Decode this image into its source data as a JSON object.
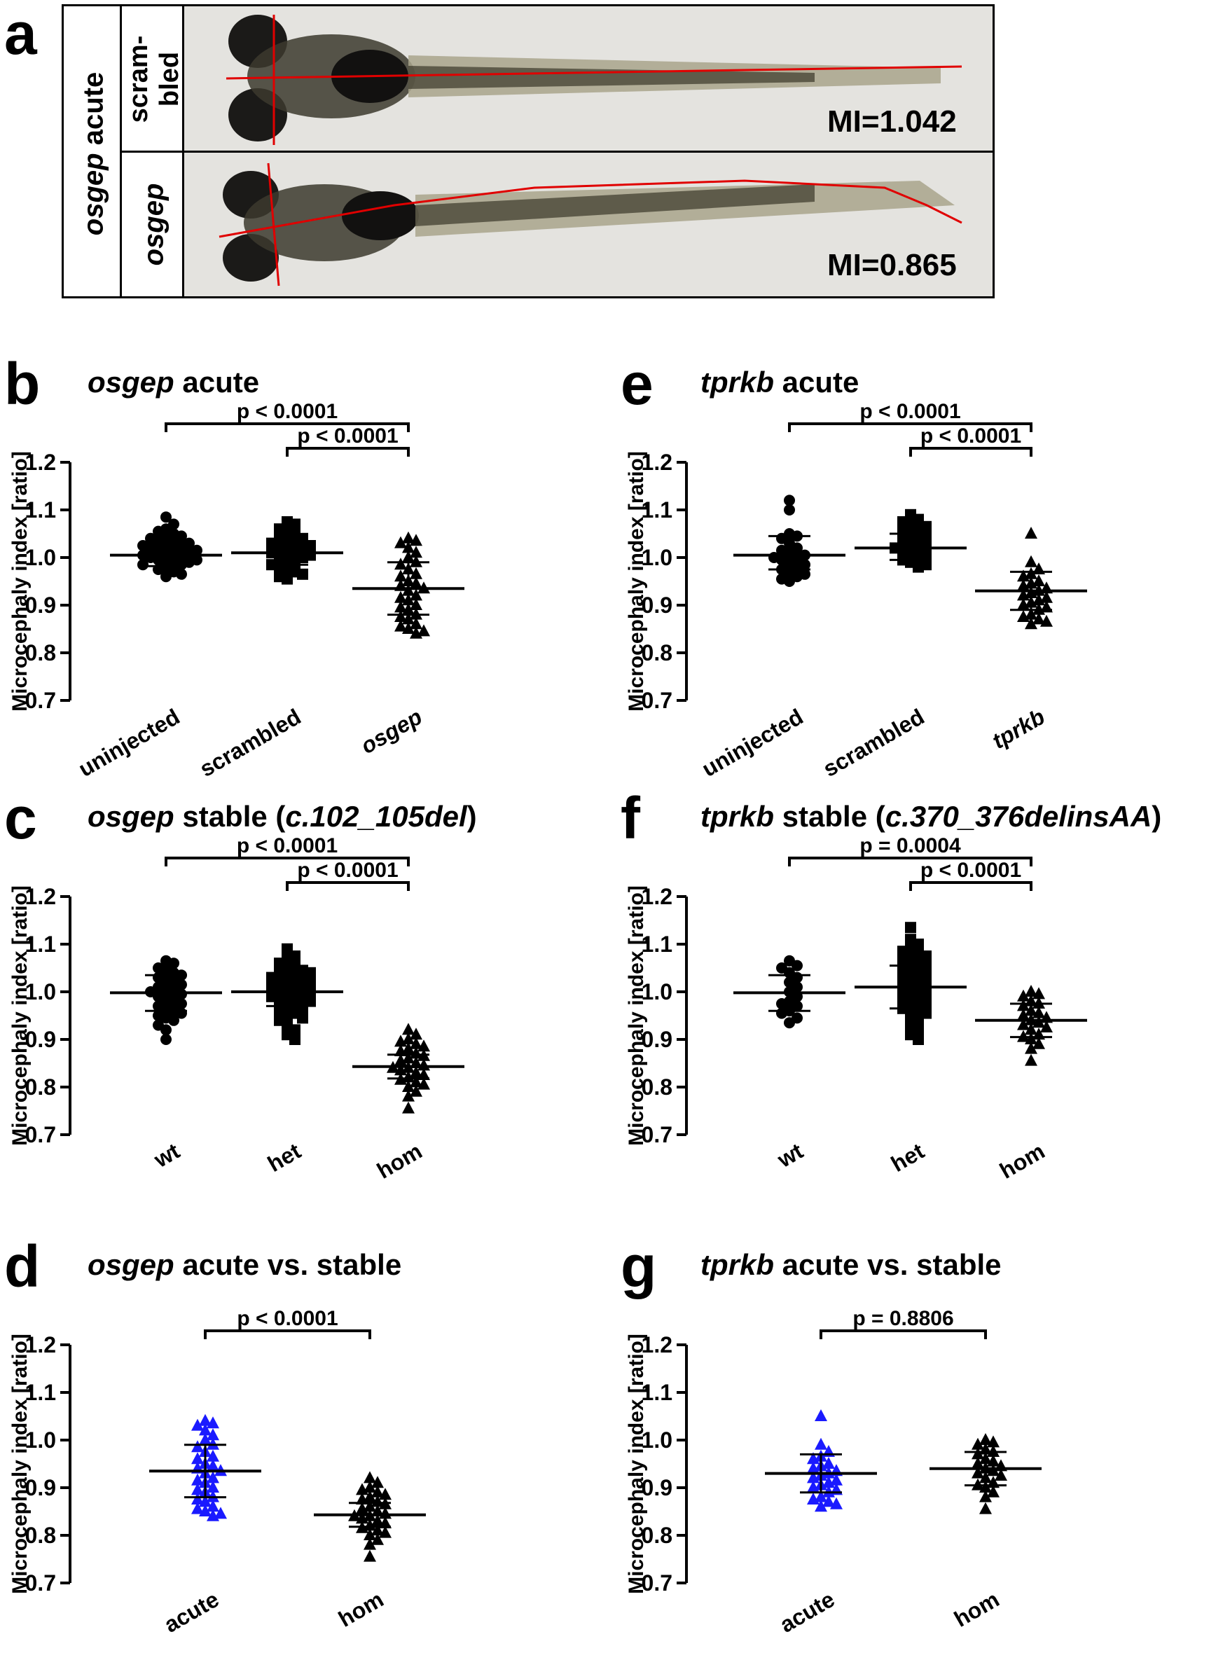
{
  "panel_a": {
    "letter": "a",
    "group_label_italic": "osgep",
    "group_label_rest": " acute",
    "rows": [
      {
        "label_line1": "scram-",
        "label_line2": "bled",
        "mi": "MI=1.042"
      },
      {
        "label": "osgep",
        "mi": "MI=0.865"
      }
    ]
  },
  "chart_data": [
    {
      "letter": "b",
      "type": "scatter",
      "title_italic": "osgep",
      "title_rest": " acute",
      "ylabel": "Microcephaly index [ratio]",
      "ylim": [
        0.7,
        1.2
      ],
      "yticks": [
        "0.7",
        "0.8",
        "0.9",
        "1.0",
        "1.1",
        "1.2"
      ],
      "categories": [
        {
          "label": "uninjected",
          "italic": false,
          "marker": "circle",
          "color": "#000000",
          "mean": 1.005,
          "sd_low": 0.982,
          "sd_high": 1.03,
          "values": [
            1.085,
            1.07,
            1.06,
            1.055,
            1.05,
            1.045,
            1.04,
            1.04,
            1.035,
            1.03,
            1.03,
            1.025,
            1.025,
            1.02,
            1.02,
            1.015,
            1.015,
            1.01,
            1.01,
            1.005,
            1.005,
            1.0,
            1.0,
            0.995,
            0.995,
            0.99,
            0.99,
            0.985,
            0.985,
            0.98,
            0.975,
            0.97,
            0.965,
            0.96
          ]
        },
        {
          "label": "scrambled",
          "italic": false,
          "marker": "square",
          "color": "#000000",
          "mean": 1.01,
          "sd_low": 0.985,
          "sd_high": 1.035,
          "values": [
            1.075,
            1.07,
            1.06,
            1.055,
            1.05,
            1.04,
            1.04,
            1.035,
            1.03,
            1.03,
            1.025,
            1.02,
            1.02,
            1.015,
            1.01,
            1.01,
            1.005,
            1.0,
            1.0,
            0.995,
            0.99,
            0.985,
            0.98,
            0.975,
            0.97,
            0.965,
            0.96,
            0.955
          ]
        },
        {
          "label": "osgep",
          "italic": true,
          "marker": "triangle",
          "color": "#000000",
          "mean": 0.935,
          "sd_low": 0.88,
          "sd_high": 0.99,
          "values": [
            1.04,
            1.035,
            1.03,
            1.02,
            1.01,
            1.0,
            0.99,
            0.985,
            0.975,
            0.965,
            0.96,
            0.95,
            0.945,
            0.94,
            0.935,
            0.93,
            0.92,
            0.915,
            0.91,
            0.9,
            0.895,
            0.89,
            0.88,
            0.875,
            0.87,
            0.86,
            0.855,
            0.85,
            0.845,
            0.84
          ]
        }
      ],
      "brackets": [
        {
          "from": 0,
          "to": 2,
          "text": "p < 0.0001",
          "level": 0
        },
        {
          "from": 1,
          "to": 2,
          "text": "p < 0.0001",
          "level": 1
        }
      ]
    },
    {
      "letter": "e",
      "type": "scatter",
      "title_italic": "tprkb",
      "title_rest": " acute",
      "ylabel": "Microcephaly index [ratio]",
      "ylim": [
        0.7,
        1.2
      ],
      "yticks": [
        "0.7",
        "0.8",
        "0.9",
        "1.0",
        "1.1",
        "1.2"
      ],
      "categories": [
        {
          "label": "uninjected",
          "italic": false,
          "marker": "circle",
          "color": "#000000",
          "mean": 1.005,
          "sd_low": 0.975,
          "sd_high": 1.045,
          "values": [
            1.12,
            1.1,
            1.05,
            1.045,
            1.04,
            1.03,
            1.02,
            1.015,
            1.01,
            1.005,
            1.0,
            1.0,
            0.995,
            0.99,
            0.985,
            0.98,
            0.975,
            0.97,
            0.965,
            0.96,
            0.955,
            0.95
          ]
        },
        {
          "label": "scrambled",
          "italic": false,
          "marker": "square",
          "color": "#000000",
          "mean": 1.02,
          "sd_low": 0.995,
          "sd_high": 1.05,
          "values": [
            1.09,
            1.08,
            1.075,
            1.07,
            1.065,
            1.06,
            1.055,
            1.05,
            1.045,
            1.04,
            1.035,
            1.03,
            1.025,
            1.02,
            1.02,
            1.015,
            1.01,
            1.005,
            1.0,
            0.995,
            0.99,
            0.985,
            0.98
          ]
        },
        {
          "label": "tprkb",
          "italic": true,
          "marker": "triangle",
          "color": "#000000",
          "mean": 0.93,
          "sd_low": 0.89,
          "sd_high": 0.97,
          "values": [
            1.05,
            0.99,
            0.975,
            0.965,
            0.96,
            0.95,
            0.945,
            0.94,
            0.935,
            0.93,
            0.925,
            0.92,
            0.915,
            0.91,
            0.905,
            0.9,
            0.895,
            0.89,
            0.88,
            0.875,
            0.87,
            0.865,
            0.86
          ]
        }
      ],
      "brackets": [
        {
          "from": 0,
          "to": 2,
          "text": "p < 0.0001",
          "level": 0
        },
        {
          "from": 1,
          "to": 2,
          "text": "p < 0.0001",
          "level": 1
        }
      ]
    },
    {
      "letter": "c",
      "type": "scatter",
      "title_italic": "osgep",
      "title_rest": " stable (",
      "title_italic2": "c.102_105del",
      "title_rest2": ")",
      "ylabel": "Microcephaly index [ratio]",
      "ylim": [
        0.7,
        1.2
      ],
      "yticks": [
        "0.7",
        "0.8",
        "0.9",
        "1.0",
        "1.1",
        "1.2"
      ],
      "categories": [
        {
          "label": "wt",
          "italic": false,
          "marker": "circle",
          "color": "#000000",
          "mean": 0.998,
          "sd_low": 0.96,
          "sd_high": 1.035,
          "values": [
            1.065,
            1.06,
            1.05,
            1.045,
            1.04,
            1.035,
            1.03,
            1.025,
            1.02,
            1.015,
            1.01,
            1.005,
            1.0,
            1.0,
            0.995,
            0.99,
            0.985,
            0.98,
            0.975,
            0.97,
            0.965,
            0.96,
            0.955,
            0.95,
            0.945,
            0.94,
            0.93,
            0.92,
            0.9
          ]
        },
        {
          "label": "het",
          "italic": false,
          "marker": "square",
          "color": "#000000",
          "mean": 1.0,
          "sd_low": 0.97,
          "sd_high": 1.03,
          "values": [
            1.09,
            1.075,
            1.07,
            1.06,
            1.055,
            1.05,
            1.045,
            1.04,
            1.04,
            1.035,
            1.03,
            1.03,
            1.025,
            1.02,
            1.02,
            1.015,
            1.01,
            1.01,
            1.005,
            1.0,
            1.0,
            0.995,
            0.99,
            0.99,
            0.985,
            0.98,
            0.98,
            0.975,
            0.97,
            0.965,
            0.96,
            0.955,
            0.95,
            0.945,
            0.94,
            0.93,
            0.92,
            0.91,
            0.9
          ]
        },
        {
          "label": "hom",
          "italic": false,
          "marker": "triangle",
          "color": "#000000",
          "mean": 0.843,
          "sd_low": 0.818,
          "sd_high": 0.868,
          "values": [
            0.92,
            0.91,
            0.9,
            0.895,
            0.89,
            0.885,
            0.88,
            0.875,
            0.87,
            0.865,
            0.86,
            0.855,
            0.85,
            0.845,
            0.84,
            0.84,
            0.835,
            0.83,
            0.825,
            0.82,
            0.815,
            0.81,
            0.805,
            0.8,
            0.79,
            0.78,
            0.755
          ]
        }
      ],
      "brackets": [
        {
          "from": 0,
          "to": 2,
          "text": "p < 0.0001",
          "level": 0
        },
        {
          "from": 1,
          "to": 2,
          "text": "p < 0.0001",
          "level": 1
        }
      ]
    },
    {
      "letter": "f",
      "type": "scatter",
      "title_italic": "tprkb",
      "title_rest": " stable (",
      "title_italic2": "c.370_376delinsAA",
      "title_rest2": ")",
      "ylabel": "Microcephaly index [ratio]",
      "ylim": [
        0.7,
        1.2
      ],
      "yticks": [
        "0.7",
        "0.8",
        "0.9",
        "1.0",
        "1.1",
        "1.2"
      ],
      "categories": [
        {
          "label": "wt",
          "italic": false,
          "marker": "circle",
          "color": "#000000",
          "mean": 0.998,
          "sd_low": 0.96,
          "sd_high": 1.035,
          "values": [
            1.065,
            1.055,
            1.05,
            1.04,
            1.03,
            1.02,
            1.01,
            1.0,
            0.99,
            0.98,
            0.975,
            0.97,
            0.96,
            0.955,
            0.945,
            0.935
          ]
        },
        {
          "label": "het",
          "italic": false,
          "marker": "square",
          "color": "#000000",
          "mean": 1.01,
          "sd_low": 0.965,
          "sd_high": 1.055,
          "values": [
            1.135,
            1.11,
            1.1,
            1.09,
            1.085,
            1.08,
            1.075,
            1.07,
            1.065,
            1.06,
            1.055,
            1.05,
            1.045,
            1.04,
            1.035,
            1.03,
            1.025,
            1.02,
            1.015,
            1.01,
            1.005,
            1.0,
            0.995,
            0.99,
            0.985,
            0.98,
            0.975,
            0.97,
            0.965,
            0.96,
            0.955,
            0.95,
            0.94,
            0.93,
            0.92,
            0.91,
            0.9
          ]
        },
        {
          "label": "hom",
          "italic": false,
          "marker": "triangle",
          "color": "#000000",
          "mean": 0.94,
          "sd_low": 0.905,
          "sd_high": 0.975,
          "values": [
            1.0,
            0.995,
            0.99,
            0.98,
            0.975,
            0.97,
            0.96,
            0.955,
            0.95,
            0.945,
            0.94,
            0.935,
            0.93,
            0.925,
            0.92,
            0.91,
            0.905,
            0.9,
            0.89,
            0.88,
            0.855
          ]
        }
      ],
      "brackets": [
        {
          "from": 0,
          "to": 2,
          "text": "p = 0.0004",
          "level": 0
        },
        {
          "from": 1,
          "to": 2,
          "text": "p < 0.0001",
          "level": 1
        }
      ]
    },
    {
      "letter": "d",
      "type": "scatter",
      "title_italic": "osgep",
      "title_rest": " acute vs. stable",
      "ylabel": "Microcephaly index [ratio]",
      "ylim": [
        0.7,
        1.2
      ],
      "yticks": [
        "0.7",
        "0.8",
        "0.9",
        "1.0",
        "1.1",
        "1.2"
      ],
      "categories": [
        {
          "label": "acute",
          "italic": false,
          "marker": "triangle",
          "color": "#1a1aff",
          "mean": 0.935,
          "sd_low": 0.88,
          "sd_high": 0.99,
          "values": [
            1.04,
            1.035,
            1.03,
            1.02,
            1.01,
            1.0,
            0.99,
            0.985,
            0.975,
            0.965,
            0.96,
            0.95,
            0.945,
            0.94,
            0.935,
            0.93,
            0.92,
            0.915,
            0.91,
            0.9,
            0.895,
            0.89,
            0.88,
            0.875,
            0.87,
            0.86,
            0.855,
            0.85,
            0.845,
            0.84
          ]
        },
        {
          "label": "hom",
          "italic": false,
          "marker": "triangle",
          "color": "#000000",
          "mean": 0.843,
          "sd_low": 0.818,
          "sd_high": 0.868,
          "values": [
            0.92,
            0.91,
            0.9,
            0.895,
            0.89,
            0.885,
            0.88,
            0.875,
            0.87,
            0.865,
            0.86,
            0.855,
            0.85,
            0.845,
            0.84,
            0.84,
            0.835,
            0.83,
            0.825,
            0.82,
            0.815,
            0.81,
            0.805,
            0.8,
            0.79,
            0.78,
            0.755
          ]
        }
      ],
      "brackets": [
        {
          "from": 0,
          "to": 1,
          "text": "p < 0.0001",
          "level": 1
        }
      ]
    },
    {
      "letter": "g",
      "type": "scatter",
      "title_italic": "tprkb",
      "title_rest": " acute vs. stable",
      "ylabel": "Microcephaly index [ratio]",
      "ylim": [
        0.7,
        1.2
      ],
      "yticks": [
        "0.7",
        "0.8",
        "0.9",
        "1.0",
        "1.1",
        "1.2"
      ],
      "categories": [
        {
          "label": "acute",
          "italic": false,
          "marker": "triangle",
          "color": "#1a1aff",
          "mean": 0.93,
          "sd_low": 0.89,
          "sd_high": 0.97,
          "values": [
            1.05,
            0.99,
            0.975,
            0.965,
            0.96,
            0.95,
            0.945,
            0.94,
            0.935,
            0.93,
            0.925,
            0.92,
            0.915,
            0.91,
            0.905,
            0.9,
            0.895,
            0.89,
            0.88,
            0.875,
            0.87,
            0.865,
            0.86
          ]
        },
        {
          "label": "hom",
          "italic": false,
          "marker": "triangle",
          "color": "#000000",
          "mean": 0.94,
          "sd_low": 0.905,
          "sd_high": 0.975,
          "values": [
            1.0,
            0.995,
            0.99,
            0.98,
            0.975,
            0.97,
            0.96,
            0.955,
            0.95,
            0.945,
            0.94,
            0.935,
            0.93,
            0.925,
            0.92,
            0.91,
            0.905,
            0.9,
            0.89,
            0.88,
            0.855
          ]
        }
      ],
      "brackets": [
        {
          "from": 0,
          "to": 1,
          "text": "p = 0.8806",
          "level": 1
        }
      ]
    }
  ]
}
